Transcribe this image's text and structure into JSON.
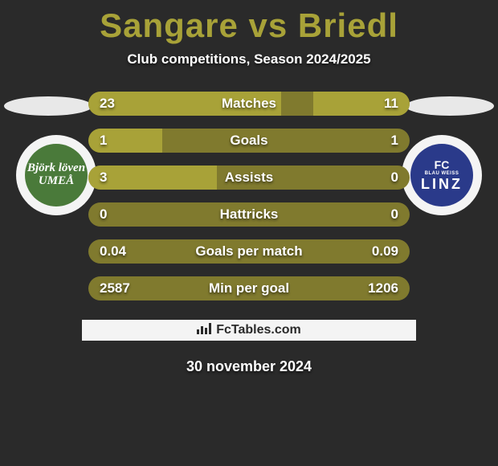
{
  "title": "Sangare vs Briedl",
  "subtitle": "Club competitions, Season 2024/2025",
  "date": "30 november 2024",
  "footer": "FcTables.com",
  "colors": {
    "accent": "#a8a238",
    "bar_bg": "#807a2e",
    "page_bg": "#2a2a2a",
    "text": "#ffffff",
    "box_bg": "#f4f4f4"
  },
  "badges": {
    "left": {
      "text": "Björk löven UMEÅ",
      "bg": "#4a7a3a"
    },
    "right": {
      "fc": "FC",
      "mid": "BLAU WEISS",
      "city": "LINZ",
      "bg": "#2a3a8a"
    }
  },
  "rows": [
    {
      "label": "Matches",
      "left": "23",
      "right": "11",
      "fill_left_pct": 60,
      "fill_right_pct": 30
    },
    {
      "label": "Goals",
      "left": "1",
      "right": "1",
      "fill_left_pct": 23,
      "fill_right_pct": 0
    },
    {
      "label": "Assists",
      "left": "3",
      "right": "0",
      "fill_left_pct": 40,
      "fill_right_pct": 0
    },
    {
      "label": "Hattricks",
      "left": "0",
      "right": "0",
      "fill_left_pct": 0,
      "fill_right_pct": 0
    },
    {
      "label": "Goals per match",
      "left": "0.04",
      "right": "0.09",
      "fill_left_pct": 0,
      "fill_right_pct": 0
    },
    {
      "label": "Min per goal",
      "left": "2587",
      "right": "1206",
      "fill_left_pct": 0,
      "fill_right_pct": 0
    }
  ]
}
